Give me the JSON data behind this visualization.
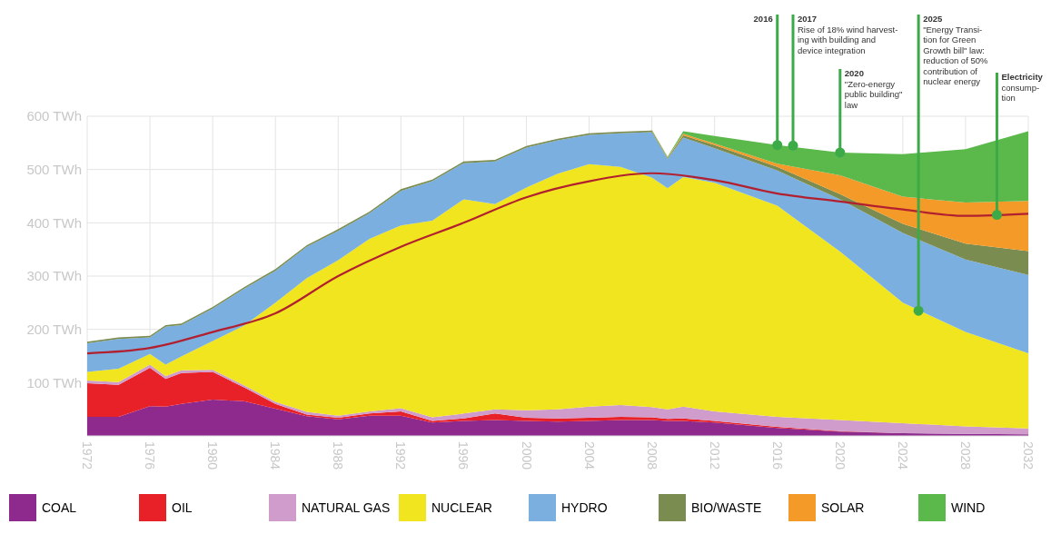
{
  "chart_data": {
    "type": "area",
    "stacked": true,
    "x": [
      1972,
      1974,
      1976,
      1977,
      1978,
      1980,
      1982,
      1984,
      1986,
      1988,
      1990,
      1992,
      1994,
      1996,
      1998,
      2000,
      2002,
      2004,
      2006,
      2008,
      2009,
      2010,
      2012,
      2016,
      2020,
      2024,
      2028,
      2032
    ],
    "series": [
      {
        "name": "COAL",
        "color": "#8e2a8e",
        "values": [
          36,
          36,
          56,
          55,
          60,
          68,
          65,
          51,
          37,
          31,
          38,
          38,
          25,
          28,
          30,
          28,
          27,
          28,
          30,
          30,
          28,
          28,
          25,
          15,
          8,
          5,
          4,
          3
        ]
      },
      {
        "name": "OIL",
        "color": "#e82028",
        "values": [
          63,
          60,
          72,
          52,
          58,
          52,
          26,
          9,
          3,
          3,
          4,
          8,
          3,
          5,
          12,
          6,
          6,
          6,
          6,
          5,
          4,
          5,
          3,
          2,
          1,
          0,
          0,
          0
        ]
      },
      {
        "name": "NATURAL GAS",
        "color": "#d09ccc",
        "values": [
          5,
          5,
          6,
          5,
          5,
          4,
          4,
          4,
          5,
          4,
          4,
          6,
          7,
          9,
          8,
          14,
          17,
          21,
          22,
          19,
          18,
          22,
          18,
          19,
          21,
          19,
          14,
          11
        ]
      },
      {
        "name": "NUCLEAR",
        "color": "#f0e51e",
        "values": [
          16,
          25,
          20,
          22,
          26,
          54,
          112,
          186,
          251,
          292,
          324,
          343,
          369,
          402,
          385,
          418,
          442,
          455,
          447,
          431,
          415,
          431,
          429,
          396,
          316,
          226,
          177,
          141
        ]
      },
      {
        "name": "HYDRO",
        "color": "#7aafe0",
        "values": [
          54,
          56,
          31,
          71,
          59,
          61,
          69,
          60,
          59,
          55,
          48,
          65,
          74,
          68,
          80,
          75,
          63,
          55,
          63,
          85,
          55,
          74,
          65,
          66,
          98,
          131,
          136,
          147
        ]
      },
      {
        "name": "BIO/WASTE",
        "color": "#7a8c50",
        "values": [
          3,
          3,
          3,
          3,
          3,
          3,
          3,
          3,
          3,
          3,
          3,
          3,
          3,
          3,
          3,
          3,
          3,
          3,
          3,
          3,
          2,
          4,
          6,
          7,
          10,
          17,
          30,
          45
        ]
      },
      {
        "name": "SOLAR",
        "color": "#f39a28",
        "values": [
          null,
          null,
          null,
          null,
          null,
          null,
          null,
          null,
          null,
          null,
          null,
          null,
          null,
          null,
          null,
          null,
          null,
          null,
          null,
          1,
          1,
          3,
          3,
          6,
          35,
          51,
          77,
          94
        ]
      },
      {
        "name": "WIND",
        "color": "#5bb84a",
        "values": [
          null,
          null,
          null,
          null,
          null,
          null,
          null,
          null,
          null,
          null,
          null,
          null,
          null,
          null,
          null,
          null,
          null,
          null,
          null,
          1,
          1,
          5,
          14,
          35,
          43,
          80,
          100,
          131
        ]
      },
      {
        "type": "line",
        "color": "#b22030",
        "x": [
          1972,
          1976,
          1980,
          1984,
          1988,
          1992,
          1996,
          2000,
          2004,
          2008,
          2012,
          2016,
          2020,
          2024,
          2028,
          2032
        ],
        "values": [
          155,
          165,
          195,
          230,
          300,
          355,
          400,
          448,
          478,
          493,
          480,
          455,
          440,
          425,
          413,
          417
        ]
      }
    ],
    "xlim": [
      1972,
      2032
    ],
    "xticks": [
      1972,
      1976,
      1980,
      1984,
      1988,
      1992,
      1996,
      2000,
      2004,
      2008,
      2012,
      2016,
      2020,
      2024,
      2028,
      2032
    ],
    "ylim": [
      0,
      600
    ],
    "yticks": [
      {
        "value": 100,
        "label": "100 TWh"
      },
      {
        "value": 200,
        "label": "200 TWh"
      },
      {
        "value": 300,
        "label": "300 TWh"
      },
      {
        "value": 400,
        "label": "400 TWh"
      },
      {
        "value": 500,
        "label": "500 TWh"
      },
      {
        "value": 600,
        "label": "600 TWh"
      }
    ],
    "grid": true,
    "legend": "bottom",
    "annotations": [
      {
        "text": "2016",
        "x": 2016,
        "y": 546
      },
      {
        "text": "2017\nRise of 18% wind harvest-\ning with building and\ndevice integration",
        "x": 2017,
        "y": 545
      },
      {
        "text": "2020\n\"Zero-energy\npublic building\"\nlaw",
        "x": 2020,
        "y": 532
      },
      {
        "text": "2025\n\"Energy Transi-\ntion for Green\nGrowth bill\" law:\nreduction of 50%\ncontribution of\nnuclear energy",
        "x": 2025,
        "y": 235
      },
      {
        "text": "Electricity\nconsump-\ntion",
        "x": 2030,
        "y": 415
      }
    ]
  }
}
